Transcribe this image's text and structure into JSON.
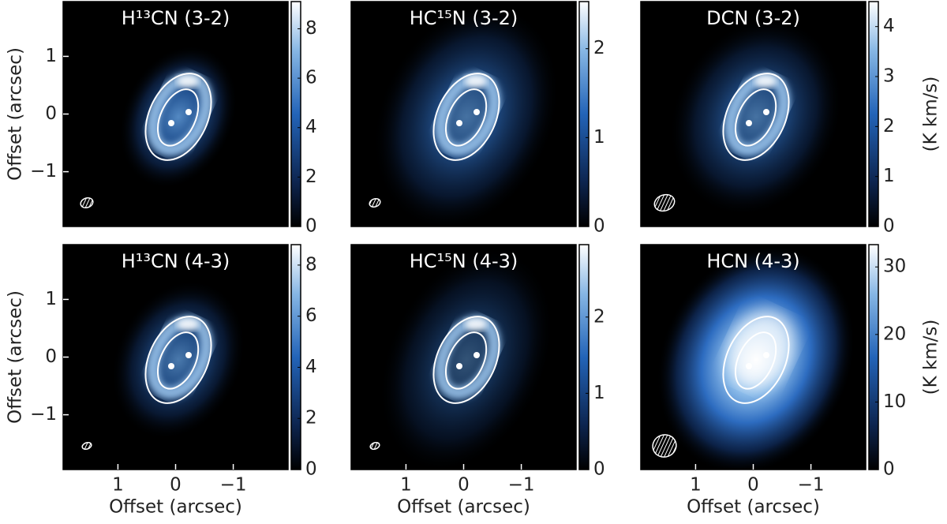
{
  "chart_data": [
    {
      "type": "image",
      "title": "H¹³CN (3-2)",
      "xlim": [
        1.95,
        -1.95
      ],
      "ylim": [
        -1.95,
        1.95
      ],
      "yticks": [
        1,
        0,
        {
          "value": -1,
          "label": "−1"
        }
      ],
      "ylabel": "Offset (arcsec)",
      "colorbar": {
        "clim": [
          0,
          9.1
        ],
        "ticks": [
          0,
          2,
          4,
          6,
          8
        ]
      }
    },
    {
      "type": "image",
      "title": "HC¹⁵N (3-2)",
      "xlim": [
        1.95,
        -1.95
      ],
      "ylim": [
        -1.95,
        1.95
      ],
      "colorbar": {
        "clim": [
          0,
          2.53
        ],
        "ticks": [
          0,
          1,
          2
        ]
      }
    },
    {
      "type": "image",
      "title": "DCN (3-2)",
      "xlim": [
        1.95,
        -1.95
      ],
      "ylim": [
        -1.95,
        1.95
      ],
      "colorbar": {
        "clim": [
          0,
          4.5
        ],
        "ticks": [
          0,
          1,
          2,
          3,
          4
        ],
        "label": "(K km/s)"
      }
    },
    {
      "type": "image",
      "title": "H¹³CN (4-3)",
      "xlim": [
        1.95,
        -1.95
      ],
      "ylim": [
        -1.95,
        1.95
      ],
      "xticks": [
        1,
        0,
        {
          "value": -1,
          "label": "−1"
        }
      ],
      "xlabel": "Offset (arcsec)",
      "yticks": [
        1,
        0,
        {
          "value": -1,
          "label": "−1"
        }
      ],
      "ylabel": "Offset (arcsec)",
      "colorbar": {
        "clim": [
          0,
          8.8
        ],
        "ticks": [
          0,
          2,
          4,
          6,
          8
        ]
      }
    },
    {
      "type": "image",
      "title": "HC¹⁵N (4-3)",
      "xlim": [
        1.95,
        -1.95
      ],
      "ylim": [
        -1.95,
        1.95
      ],
      "xticks": [
        1,
        0,
        {
          "value": -1,
          "label": "−1"
        }
      ],
      "xlabel": "Offset (arcsec)",
      "colorbar": {
        "clim": [
          0,
          2.95
        ],
        "ticks": [
          0,
          1,
          2
        ]
      }
    },
    {
      "type": "image",
      "title": "HCN (4-3)",
      "xlim": [
        1.95,
        -1.95
      ],
      "ylim": [
        -1.95,
        1.95
      ],
      "xticks": [
        1,
        0,
        {
          "value": -1,
          "label": "−1"
        }
      ],
      "xlabel": "Offset (arcsec)",
      "colorbar": {
        "clim": [
          0,
          33.3
        ],
        "ticks": [
          0,
          10,
          20,
          30
        ],
        "label": "(K km/s)"
      }
    }
  ]
}
